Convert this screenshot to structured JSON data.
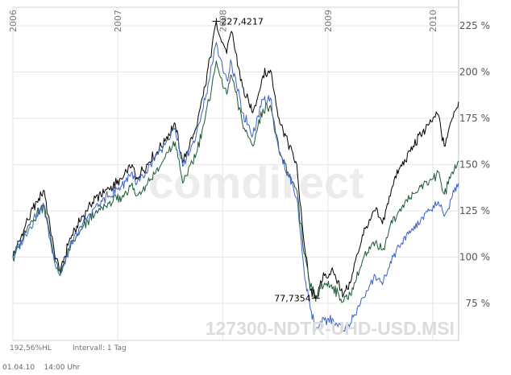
{
  "chart_data": {
    "type": "line",
    "ylim": [
      55,
      235
    ],
    "y_ticks": [
      {
        "value": 75,
        "label": "75 %"
      },
      {
        "value": 100,
        "label": "100 %"
      },
      {
        "value": 125,
        "label": "125 %"
      },
      {
        "value": 150,
        "label": "150 %"
      },
      {
        "value": 175,
        "label": "175 %"
      },
      {
        "value": 200,
        "label": "200 %"
      },
      {
        "value": 225,
        "label": "225 %"
      }
    ],
    "x_range": [
      "2006-01-01",
      "2010-04-01"
    ],
    "x_ticks": [
      {
        "value": "2006-01-01",
        "label": "2006"
      },
      {
        "value": "2007-01-01",
        "label": "2007"
      },
      {
        "value": "2008-01-01",
        "label": "2008"
      },
      {
        "value": "2009-01-01",
        "label": "2009"
      },
      {
        "value": "2010-01-01",
        "label": "2010"
      }
    ],
    "grid": true,
    "series": [
      {
        "color": "#000000",
        "points": [
          [
            "2006-01-01",
            100
          ],
          [
            "2006-02-15",
            118
          ],
          [
            "2006-03-25",
            130
          ],
          [
            "2006-04-20",
            136
          ],
          [
            "2006-05-10",
            117
          ],
          [
            "2006-05-25",
            103
          ],
          [
            "2006-06-15",
            92
          ],
          [
            "2006-07-15",
            108
          ],
          [
            "2006-09-01",
            122
          ],
          [
            "2006-10-15",
            132
          ],
          [
            "2006-12-01",
            137
          ],
          [
            "2007-01-15",
            142
          ],
          [
            "2007-02-20",
            150
          ],
          [
            "2007-03-05",
            142
          ],
          [
            "2007-04-15",
            150
          ],
          [
            "2007-06-01",
            160
          ],
          [
            "2007-07-20",
            172
          ],
          [
            "2007-08-15",
            151
          ],
          [
            "2007-10-01",
            170
          ],
          [
            "2007-11-01",
            192
          ],
          [
            "2007-11-25",
            214
          ],
          [
            "2007-12-10",
            227.42
          ],
          [
            "2007-12-25",
            218
          ],
          [
            "2008-01-15",
            210
          ],
          [
            "2008-02-01",
            222
          ],
          [
            "2008-03-10",
            192
          ],
          [
            "2008-04-15",
            178
          ],
          [
            "2008-05-20",
            198
          ],
          [
            "2008-06-15",
            201
          ],
          [
            "2008-07-15",
            175
          ],
          [
            "2008-08-15",
            162
          ],
          [
            "2008-09-15",
            150
          ],
          [
            "2008-10-10",
            108
          ],
          [
            "2008-11-01",
            82
          ],
          [
            "2008-11-20",
            77.74
          ],
          [
            "2008-12-20",
            90
          ],
          [
            "2009-01-20",
            92
          ],
          [
            "2009-02-25",
            80
          ],
          [
            "2009-03-20",
            86
          ],
          [
            "2009-05-01",
            112
          ],
          [
            "2009-06-15",
            125
          ],
          [
            "2009-07-10",
            118
          ],
          [
            "2009-08-20",
            142
          ],
          [
            "2009-10-15",
            157
          ],
          [
            "2009-11-20",
            166
          ],
          [
            "2009-12-20",
            172
          ],
          [
            "2010-01-20",
            177
          ],
          [
            "2010-02-10",
            160
          ],
          [
            "2010-03-10",
            175
          ],
          [
            "2010-04-01",
            184
          ]
        ]
      },
      {
        "color": "#1d5a34",
        "points": [
          [
            "2006-01-01",
            100
          ],
          [
            "2006-02-15",
            113
          ],
          [
            "2006-03-25",
            123
          ],
          [
            "2006-04-20",
            128
          ],
          [
            "2006-05-10",
            112
          ],
          [
            "2006-05-25",
            100
          ],
          [
            "2006-06-15",
            91
          ],
          [
            "2006-07-15",
            104
          ],
          [
            "2006-09-01",
            116
          ],
          [
            "2006-10-15",
            124
          ],
          [
            "2006-12-01",
            129
          ],
          [
            "2007-01-15",
            132
          ],
          [
            "2007-02-20",
            140
          ],
          [
            "2007-03-05",
            133
          ],
          [
            "2007-04-15",
            140
          ],
          [
            "2007-06-01",
            150
          ],
          [
            "2007-07-20",
            162
          ],
          [
            "2007-08-15",
            140
          ],
          [
            "2007-10-01",
            156
          ],
          [
            "2007-11-01",
            175
          ],
          [
            "2007-11-25",
            193
          ],
          [
            "2007-12-10",
            206
          ],
          [
            "2007-12-25",
            197
          ],
          [
            "2008-01-15",
            188
          ],
          [
            "2008-02-01",
            198
          ],
          [
            "2008-03-10",
            172
          ],
          [
            "2008-04-15",
            160
          ],
          [
            "2008-05-20",
            180
          ],
          [
            "2008-06-15",
            182
          ],
          [
            "2008-07-15",
            157
          ],
          [
            "2008-08-15",
            146
          ],
          [
            "2008-09-15",
            136
          ],
          [
            "2008-10-10",
            102
          ],
          [
            "2008-11-01",
            84
          ],
          [
            "2008-11-20",
            78
          ],
          [
            "2008-12-20",
            86
          ],
          [
            "2009-01-20",
            84
          ],
          [
            "2009-02-25",
            76
          ],
          [
            "2009-03-20",
            80
          ],
          [
            "2009-05-01",
            98
          ],
          [
            "2009-06-15",
            108
          ],
          [
            "2009-07-10",
            104
          ],
          [
            "2009-08-20",
            122
          ],
          [
            "2009-10-15",
            132
          ],
          [
            "2009-11-20",
            138
          ],
          [
            "2009-12-20",
            141
          ],
          [
            "2010-01-20",
            146
          ],
          [
            "2010-02-10",
            134
          ],
          [
            "2010-03-10",
            146
          ],
          [
            "2010-04-01",
            152
          ]
        ]
      },
      {
        "color": "#3a63c4",
        "points": [
          [
            "2006-01-01",
            100
          ],
          [
            "2006-02-15",
            112
          ],
          [
            "2006-03-25",
            123
          ],
          [
            "2006-04-20",
            127
          ],
          [
            "2006-05-10",
            110
          ],
          [
            "2006-05-25",
            98
          ],
          [
            "2006-06-15",
            90
          ],
          [
            "2006-07-15",
            104
          ],
          [
            "2006-09-01",
            118
          ],
          [
            "2006-10-15",
            127
          ],
          [
            "2006-12-01",
            133
          ],
          [
            "2007-01-15",
            139
          ],
          [
            "2007-02-20",
            146
          ],
          [
            "2007-03-05",
            139
          ],
          [
            "2007-04-15",
            146
          ],
          [
            "2007-06-01",
            158
          ],
          [
            "2007-07-20",
            170
          ],
          [
            "2007-08-15",
            149
          ],
          [
            "2007-10-01",
            166
          ],
          [
            "2007-11-01",
            185
          ],
          [
            "2007-11-25",
            204
          ],
          [
            "2007-12-10",
            216
          ],
          [
            "2007-12-25",
            207
          ],
          [
            "2008-01-15",
            196
          ],
          [
            "2008-02-01",
            205
          ],
          [
            "2008-03-10",
            178
          ],
          [
            "2008-04-15",
            166
          ],
          [
            "2008-05-20",
            185
          ],
          [
            "2008-06-15",
            186
          ],
          [
            "2008-07-15",
            157
          ],
          [
            "2008-08-15",
            145
          ],
          [
            "2008-09-15",
            132
          ],
          [
            "2008-10-10",
            93
          ],
          [
            "2008-11-01",
            72
          ],
          [
            "2008-11-20",
            61
          ],
          [
            "2008-12-20",
            66
          ],
          [
            "2009-01-20",
            66
          ],
          [
            "2009-02-25",
            60
          ],
          [
            "2009-03-20",
            64
          ],
          [
            "2009-05-01",
            78
          ],
          [
            "2009-06-15",
            90
          ],
          [
            "2009-07-10",
            85
          ],
          [
            "2009-08-20",
            102
          ],
          [
            "2009-10-15",
            113
          ],
          [
            "2009-11-20",
            120
          ],
          [
            "2009-12-20",
            125
          ],
          [
            "2010-01-20",
            130
          ],
          [
            "2010-02-10",
            122
          ],
          [
            "2010-03-10",
            133
          ],
          [
            "2010-04-01",
            140
          ]
        ]
      }
    ],
    "annotations": [
      {
        "date": "2007-12-10",
        "value": 227.42,
        "label": "227,4217",
        "side": "right"
      },
      {
        "date": "2008-11-20",
        "value": 77.74,
        "label": "77,7354",
        "side": "left"
      }
    ],
    "instrument": "127300-NDTR-UHD-USD.MSI",
    "watermark": "comdirect",
    "info_left": "192,56%HL",
    "info_interval": "Intervall: 1 Tag"
  },
  "footer": {
    "date": "01.04.10",
    "time": "14:00 Uhr"
  }
}
